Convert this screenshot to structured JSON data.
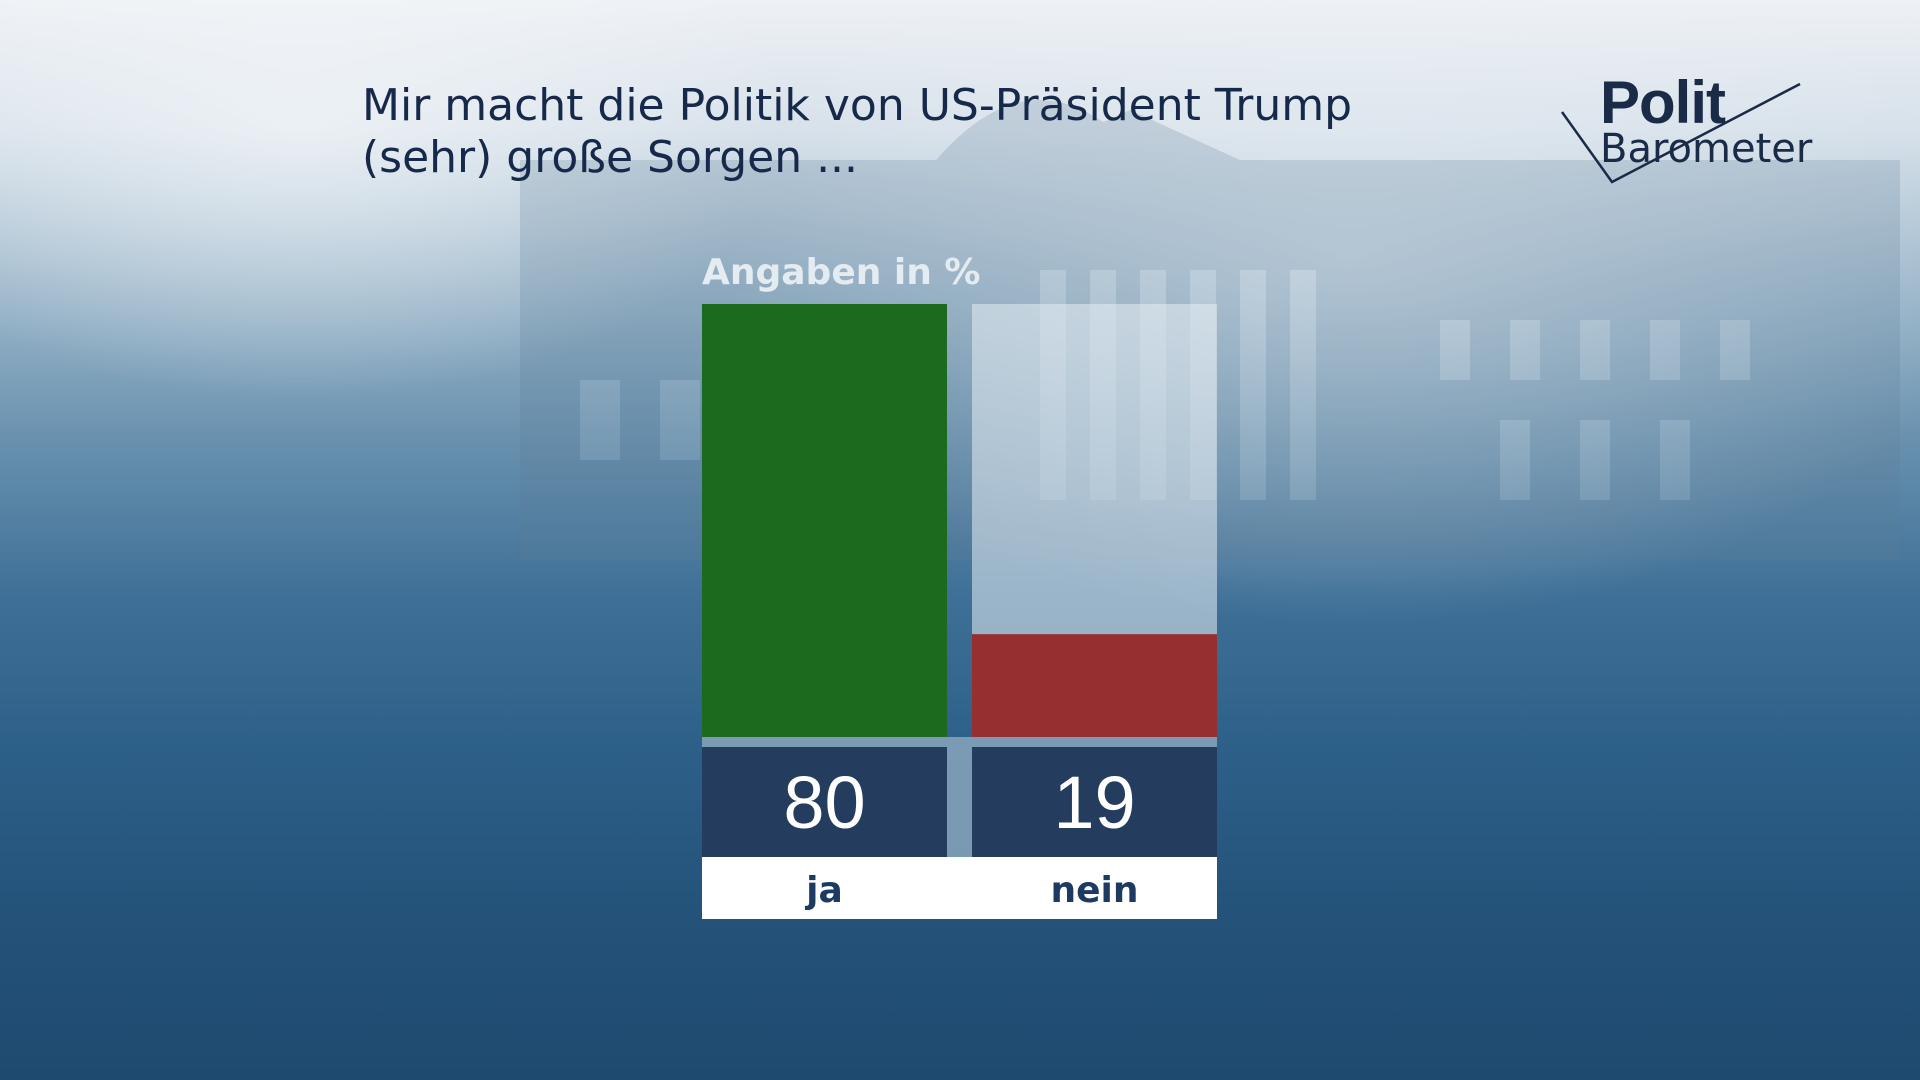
{
  "title_lines": [
    "Mir macht die Politik von US-Präsident Trump",
    "(sehr) große Sorgen ..."
  ],
  "logo": {
    "line1": "Polit",
    "line2": "Barometer"
  },
  "colors": {
    "ja": "#1c6a1d",
    "nein": "#963030",
    "value_box": "#243d5f",
    "track": "rgba(230,236,242,0.55)",
    "category_box": "#ffffff"
  },
  "chart_data": {
    "type": "bar",
    "title": "Mir macht die Politik von US-Präsident Trump (sehr) große Sorgen ...",
    "unit_label": "Angaben in %",
    "categories": [
      "ja",
      "nein"
    ],
    "values": [
      80,
      19
    ],
    "ylim": [
      0,
      80
    ],
    "grid": false,
    "legend": "none"
  }
}
